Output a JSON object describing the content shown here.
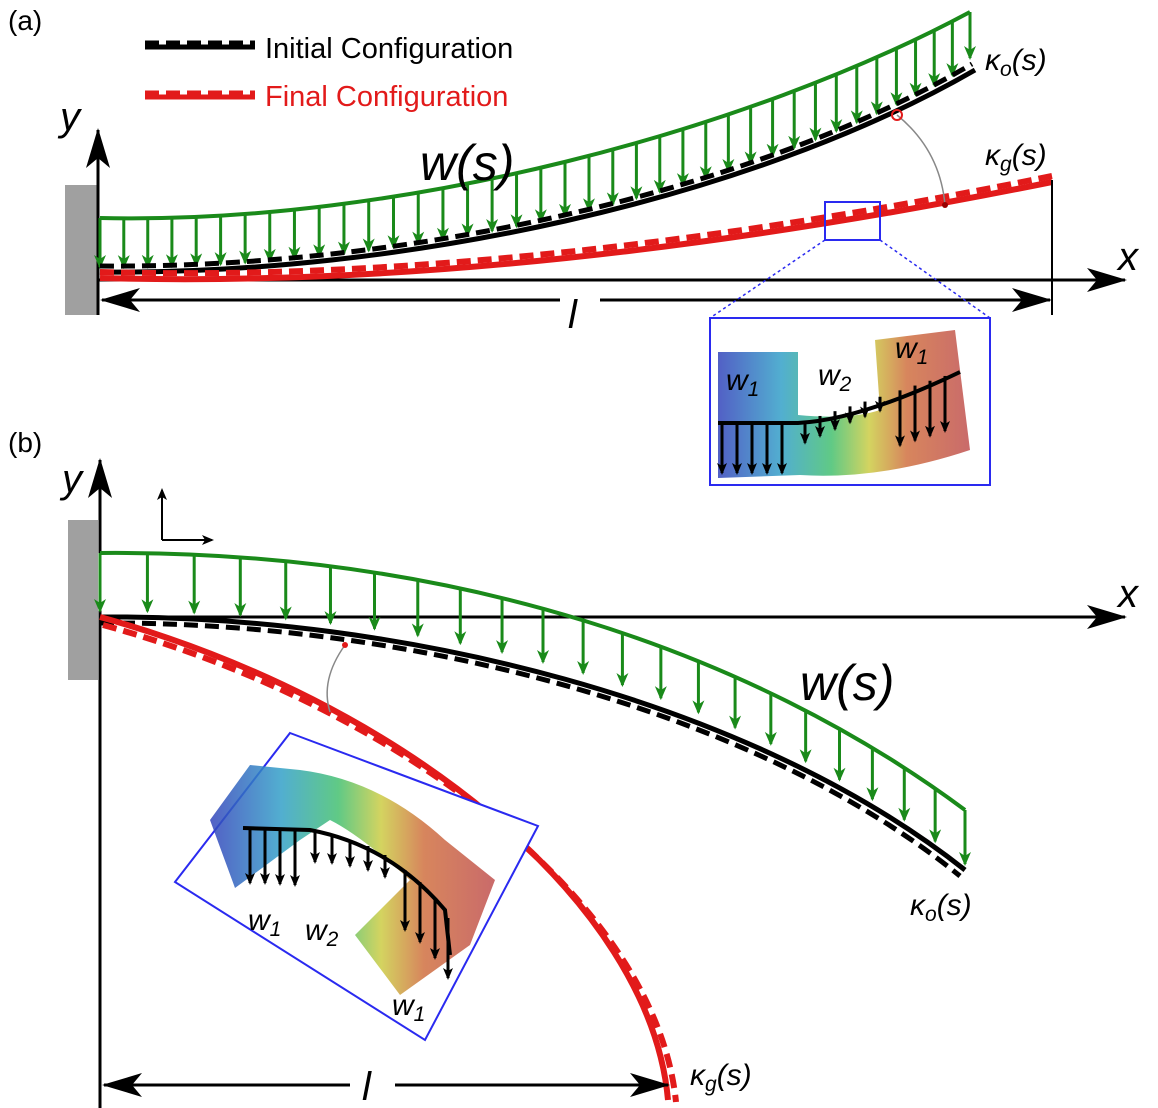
{
  "panel_a": {
    "label": "(a)",
    "legend": [
      "Initial Configuration",
      "Final Configuration"
    ],
    "axis_y": "y",
    "axis_x": "x",
    "load": "w(s)",
    "kappa_o": {
      "base": "κ",
      "sub": "o",
      "arg": "(s)"
    },
    "kappa_g": {
      "base": "κ",
      "sub": "g",
      "arg": "(s)"
    },
    "length": "l",
    "inset": {
      "w1_left": {
        "base": "w",
        "sub": "1"
      },
      "w2": {
        "base": "w",
        "sub": "2"
      },
      "w1_right": {
        "base": "w",
        "sub": "1"
      }
    }
  },
  "panel_b": {
    "label": "(b)",
    "axis_y": "y",
    "axis_x": "x",
    "load": "w(s)",
    "kappa_o": {
      "base": "κ",
      "sub": "o",
      "arg": "(s)"
    },
    "kappa_g": {
      "base": "κ",
      "sub": "g",
      "arg": "(s)"
    },
    "length": "l",
    "inset": {
      "w1_left": {
        "base": "w",
        "sub": "1"
      },
      "w2": {
        "base": "w",
        "sub": "2"
      },
      "w1_right": {
        "base": "w",
        "sub": "1"
      }
    }
  }
}
